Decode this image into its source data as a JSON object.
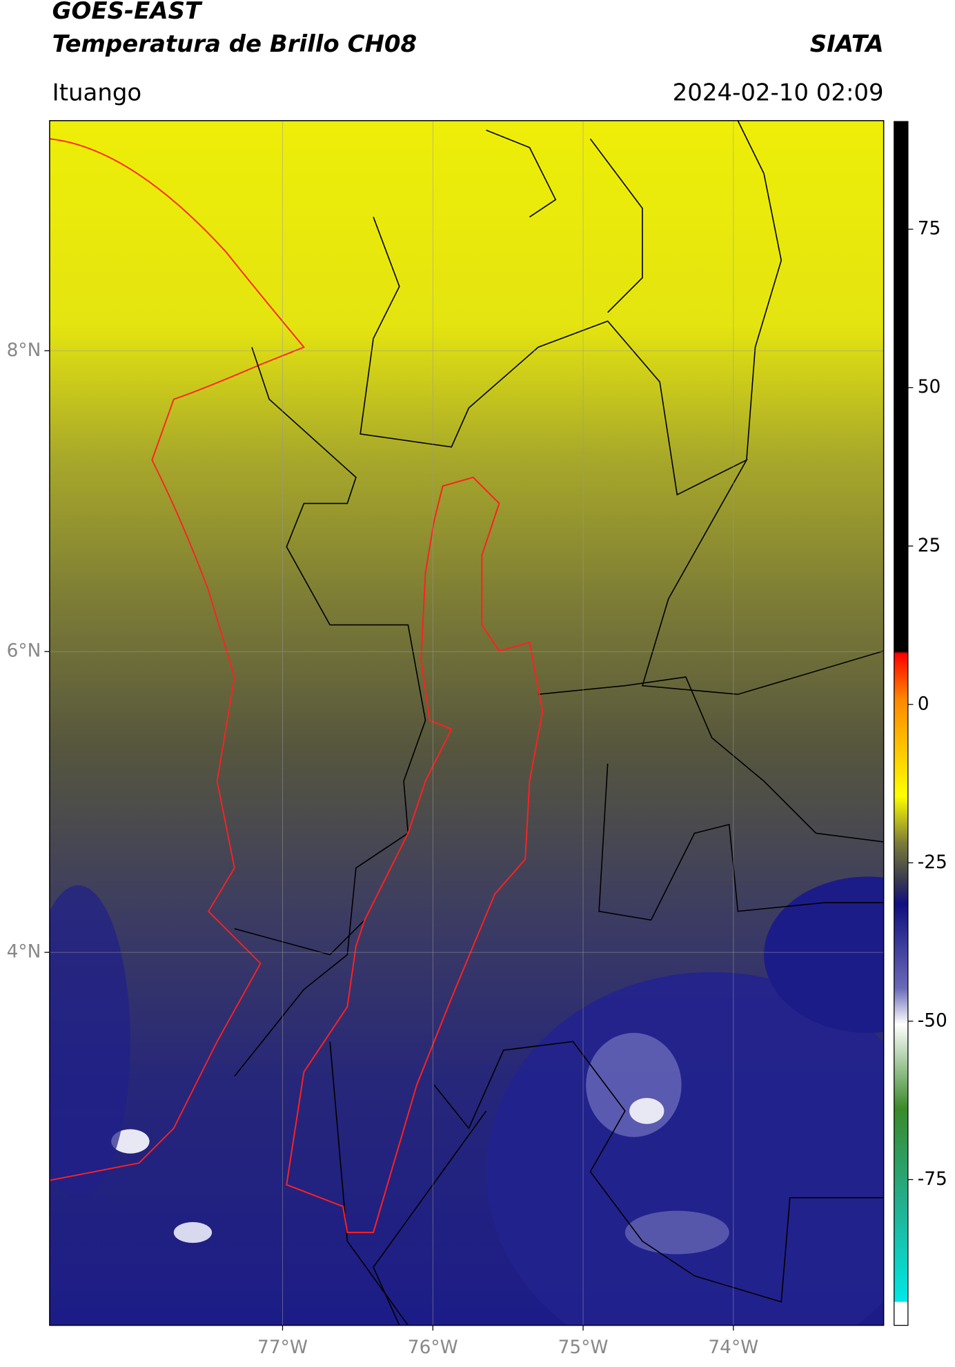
{
  "header": {
    "title": "GOES-EAST",
    "subtitle": "Temperatura de Brillo CH08",
    "source": "SIATA",
    "location": "Ituango",
    "datetime": "2024-02-10 02:09"
  },
  "map": {
    "xlim": [
      -78.55,
      -73.0
    ],
    "ylim": [
      1.52,
      9.53
    ],
    "xticks": [
      {
        "value": -77,
        "label": "77°W"
      },
      {
        "value": -76,
        "label": "76°W"
      },
      {
        "value": -75,
        "label": "75°W"
      },
      {
        "value": -74,
        "label": "74°W"
      }
    ],
    "yticks": [
      {
        "value": 8,
        "label": "8°N"
      },
      {
        "value": 6,
        "label": "6°N"
      },
      {
        "value": 4,
        "label": "4°N"
      }
    ],
    "grid": true
  },
  "colorbar": {
    "lim": [
      -98,
      92
    ],
    "ticks": [
      75,
      50,
      25,
      0,
      -25,
      -50,
      -75
    ]
  }
}
